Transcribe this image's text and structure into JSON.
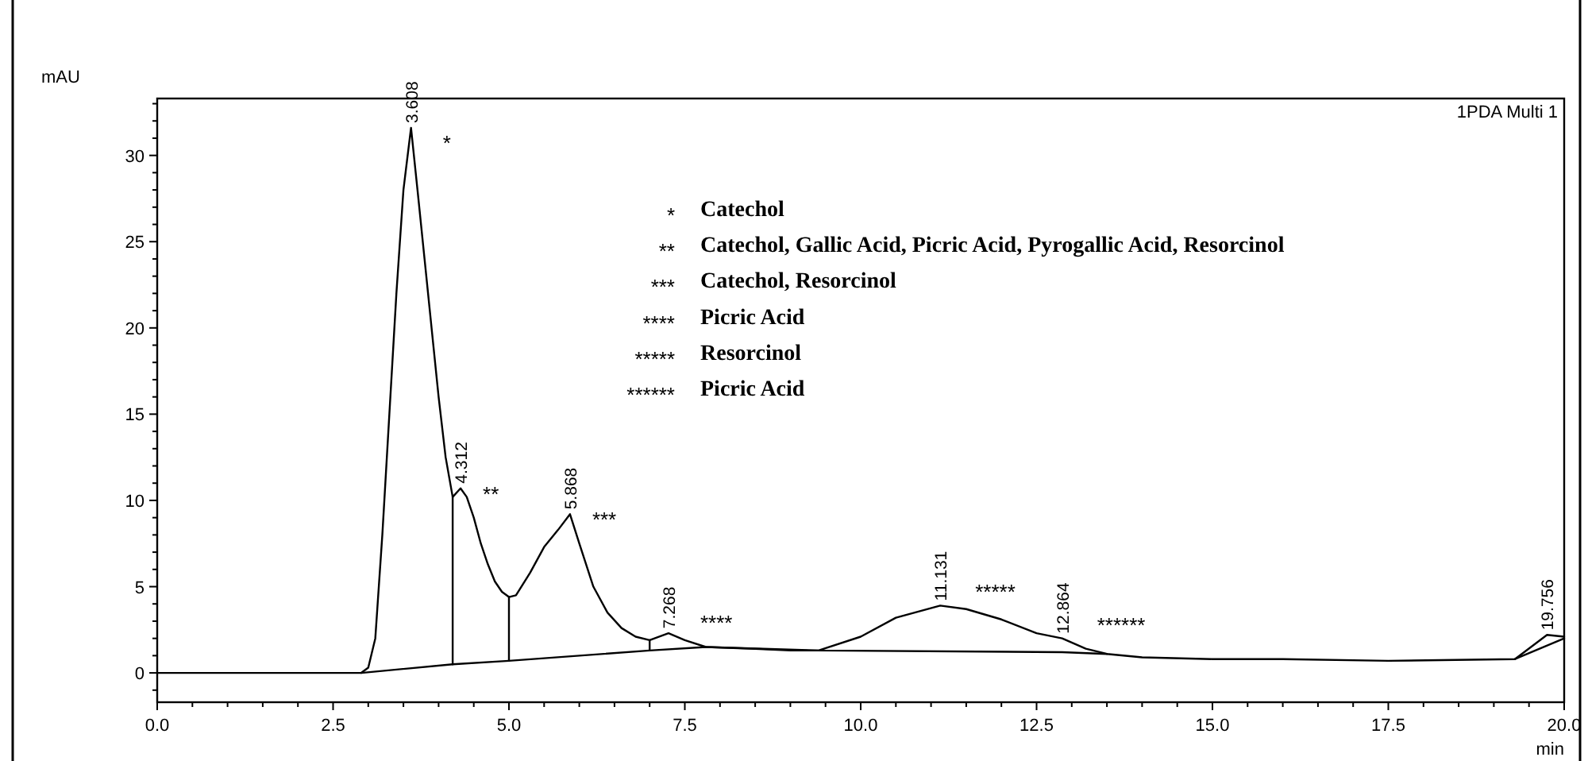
{
  "chart_data": {
    "type": "line",
    "subtitle": "1PDA Multi 1",
    "xlabel": "min",
    "ylabel": "mAU",
    "xlim": [
      0,
      20
    ],
    "ylim": [
      -1.7,
      33.3
    ],
    "xticks": [
      {
        "value": 0,
        "label": "0.0"
      },
      {
        "value": 0.5,
        "label": null
      },
      {
        "value": 1,
        "label": null
      },
      {
        "value": 1.5,
        "label": null
      },
      {
        "value": 2,
        "label": null
      },
      {
        "value": 2.5,
        "label": "2.5"
      },
      {
        "value": 3,
        "label": null
      },
      {
        "value": 3.5,
        "label": null
      },
      {
        "value": 4,
        "label": null
      },
      {
        "value": 4.5,
        "label": null
      },
      {
        "value": 5,
        "label": "5.0"
      },
      {
        "value": 5.5,
        "label": null
      },
      {
        "value": 6,
        "label": null
      },
      {
        "value": 6.5,
        "label": null
      },
      {
        "value": 7,
        "label": null
      },
      {
        "value": 7.5,
        "label": "7.5"
      },
      {
        "value": 8,
        "label": null
      },
      {
        "value": 8.5,
        "label": null
      },
      {
        "value": 9,
        "label": null
      },
      {
        "value": 9.5,
        "label": null
      },
      {
        "value": 10,
        "label": "10.0"
      },
      {
        "value": 10.5,
        "label": null
      },
      {
        "value": 11,
        "label": null
      },
      {
        "value": 11.5,
        "label": null
      },
      {
        "value": 12,
        "label": null
      },
      {
        "value": 12.5,
        "label": "12.5"
      },
      {
        "value": 13,
        "label": null
      },
      {
        "value": 13.5,
        "label": null
      },
      {
        "value": 14,
        "label": null
      },
      {
        "value": 14.5,
        "label": null
      },
      {
        "value": 15,
        "label": "15.0"
      },
      {
        "value": 15.5,
        "label": null
      },
      {
        "value": 16,
        "label": null
      },
      {
        "value": 16.5,
        "label": null
      },
      {
        "value": 17,
        "label": null
      },
      {
        "value": 17.5,
        "label": "17.5"
      },
      {
        "value": 18,
        "label": null
      },
      {
        "value": 18.5,
        "label": null
      },
      {
        "value": 19,
        "label": null
      },
      {
        "value": 19.5,
        "label": null
      },
      {
        "value": 20,
        "label": "20.0"
      }
    ],
    "yticks": [
      {
        "value": -1,
        "label": null
      },
      0,
      {
        "value": 1,
        "label": null
      },
      {
        "value": 2,
        "label": null
      },
      {
        "value": 3,
        "label": null
      },
      {
        "value": 4,
        "label": null
      },
      5,
      {
        "value": 6,
        "label": null
      },
      {
        "value": 7,
        "label": null
      },
      {
        "value": 8,
        "label": null
      },
      {
        "value": 9,
        "label": null
      },
      10,
      {
        "value": 11,
        "label": null
      },
      {
        "value": 12,
        "label": null
      },
      {
        "value": 13,
        "label": null
      },
      {
        "value": 14,
        "label": null
      },
      15,
      {
        "value": 16,
        "label": null
      },
      {
        "value": 17,
        "label": null
      },
      {
        "value": 18,
        "label": null
      },
      {
        "value": 19,
        "label": null
      },
      20,
      {
        "value": 21,
        "label": null
      },
      {
        "value": 22,
        "label": null
      },
      {
        "value": 23,
        "label": null
      },
      {
        "value": 24,
        "label": null
      },
      25,
      {
        "value": 26,
        "label": null
      },
      {
        "value": 27,
        "label": null
      },
      {
        "value": 28,
        "label": null
      },
      {
        "value": 29,
        "label": null
      },
      30,
      {
        "value": 31,
        "label": null
      },
      {
        "value": 32,
        "label": null
      },
      {
        "value": 33,
        "label": null
      }
    ],
    "grid": false,
    "marker": "none",
    "line_style": "solid",
    "series": [
      {
        "color": "#000000",
        "x": [
          0,
          1,
          2,
          2.9,
          3.0,
          3.1,
          3.2,
          3.3,
          3.4,
          3.5,
          3.608,
          3.7,
          3.8,
          3.9,
          4.0,
          4.1,
          4.2,
          4.312,
          4.4,
          4.5,
          4.6,
          4.7,
          4.8,
          4.9,
          5.0,
          5.1,
          5.3,
          5.5,
          5.7,
          5.868,
          6.0,
          6.2,
          6.4,
          6.6,
          6.8,
          7.0,
          7.268,
          7.5,
          7.8,
          8.5,
          9.0,
          9.4,
          10.0,
          10.5,
          11.131,
          11.5,
          12.0,
          12.5,
          12.864,
          13.2,
          13.5,
          14.0,
          15.0,
          16.0,
          17.5,
          19.3,
          19.756,
          20.0
        ],
        "values": [
          0,
          0,
          0,
          0,
          0.3,
          2,
          8,
          15,
          22,
          28,
          31.6,
          28,
          24,
          20,
          16,
          12.5,
          10.2,
          10.7,
          10.2,
          9,
          7.5,
          6.3,
          5.3,
          4.7,
          4.4,
          4.5,
          5.8,
          7.3,
          8.3,
          9.2,
          7.5,
          5,
          3.5,
          2.6,
          2.1,
          1.9,
          2.3,
          1.9,
          1.5,
          1.4,
          1.3,
          1.3,
          2.1,
          3.2,
          3.9,
          3.7,
          3.1,
          2.3,
          2.0,
          1.4,
          1.1,
          0.9,
          0.8,
          0.8,
          0.7,
          0.8,
          2.2,
          2.1
        ]
      },
      {
        "color": "#000000",
        "x": [
          2.9,
          4.2,
          5.0,
          7.0,
          7.8,
          9.4,
          12.864,
          13.5
        ],
        "values": [
          0,
          0.5,
          0.7,
          1.3,
          1.5,
          1.3,
          1.2,
          1.1
        ]
      },
      {
        "color": "#000000",
        "x": [
          4.2,
          4.2
        ],
        "values": [
          0.5,
          10.2
        ]
      },
      {
        "color": "#000000",
        "x": [
          5.0,
          5.0
        ],
        "values": [
          0.7,
          4.4
        ]
      },
      {
        "color": "#000000",
        "x": [
          7.0,
          7.0
        ],
        "values": [
          1.3,
          1.9
        ]
      },
      {
        "color": "#000000",
        "x": [
          19.3,
          20.0
        ],
        "values": [
          0.8,
          2.0
        ]
      }
    ],
    "annotations": [
      {
        "text": "3.608",
        "x": 3.608,
        "y": 31.6
      },
      {
        "text": "4.312",
        "x": 4.312,
        "y": 10.7
      },
      {
        "text": "5.868",
        "x": 5.868,
        "y": 9.2
      },
      {
        "text": "7.268",
        "x": 7.268,
        "y": 2.3
      },
      {
        "text": "11.131",
        "x": 11.131,
        "y": 3.9
      },
      {
        "text": "12.864",
        "x": 12.864,
        "y": 2.0
      },
      {
        "text": "19.756",
        "x": 19.756,
        "y": 2.2
      },
      "*",
      "**",
      "***",
      "****",
      "*****",
      "******",
      "* Catechol",
      "** Catechol, Gallic Acid, Picric Acid, Pyrogallic Acid, Resorcinol",
      "*** Catechol, Resorcinol",
      "**** Picric Acid",
      "***** Resorcinol",
      "****** Picric Acid"
    ]
  }
}
